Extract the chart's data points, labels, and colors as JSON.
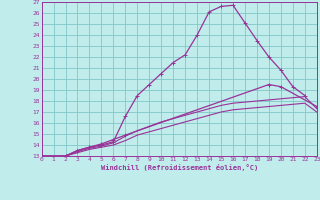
{
  "xlabel": "Windchill (Refroidissement éolien,°C)",
  "bg_color": "#c0ecec",
  "grid_color": "#80c8c8",
  "line_color": "#993399",
  "spine_color": "#993399",
  "xlim": [
    0,
    23
  ],
  "ylim": [
    13,
    27
  ],
  "xticks": [
    0,
    1,
    2,
    3,
    4,
    5,
    6,
    7,
    8,
    9,
    10,
    11,
    12,
    13,
    14,
    15,
    16,
    17,
    18,
    19,
    20,
    21,
    22,
    23
  ],
  "yticks": [
    13,
    14,
    15,
    16,
    17,
    18,
    19,
    20,
    21,
    22,
    23,
    24,
    25,
    26,
    27
  ],
  "c1x": [
    0,
    1,
    2,
    3,
    4,
    5,
    6,
    7,
    8,
    9,
    10,
    11,
    12,
    13,
    14,
    15,
    16,
    17,
    18,
    19,
    20,
    21,
    22
  ],
  "c1y": [
    13,
    12.9,
    13.0,
    13.5,
    13.8,
    14.0,
    14.3,
    16.6,
    18.5,
    19.5,
    20.5,
    21.5,
    22.2,
    24.0,
    26.1,
    26.6,
    26.7,
    25.1,
    23.5,
    22.0,
    20.8,
    19.3,
    18.5
  ],
  "c2x": [
    0,
    2,
    3,
    4,
    5,
    6,
    7,
    19,
    20,
    23
  ],
  "c2y": [
    13,
    13.0,
    13.5,
    13.8,
    14.1,
    14.5,
    14.9,
    19.5,
    19.3,
    17.5
  ],
  "c3x": [
    0,
    2,
    3,
    4,
    5,
    6,
    7,
    8,
    9,
    10,
    11,
    12,
    13,
    14,
    15,
    16,
    17,
    18,
    19,
    20,
    21,
    22,
    23
  ],
  "c3y": [
    13,
    13.0,
    13.4,
    13.7,
    13.9,
    14.2,
    14.8,
    15.3,
    15.7,
    16.1,
    16.4,
    16.7,
    17.0,
    17.3,
    17.6,
    17.8,
    17.9,
    18.0,
    18.1,
    18.2,
    18.3,
    18.4,
    17.3
  ],
  "c4x": [
    0,
    2,
    3,
    4,
    5,
    6,
    7,
    8,
    9,
    10,
    11,
    12,
    13,
    14,
    15,
    16,
    17,
    18,
    19,
    20,
    21,
    22,
    23
  ],
  "c4y": [
    13,
    13.0,
    13.3,
    13.6,
    13.8,
    14.0,
    14.4,
    14.9,
    15.2,
    15.5,
    15.8,
    16.1,
    16.4,
    16.7,
    17.0,
    17.2,
    17.3,
    17.4,
    17.5,
    17.6,
    17.7,
    17.8,
    17.0
  ]
}
